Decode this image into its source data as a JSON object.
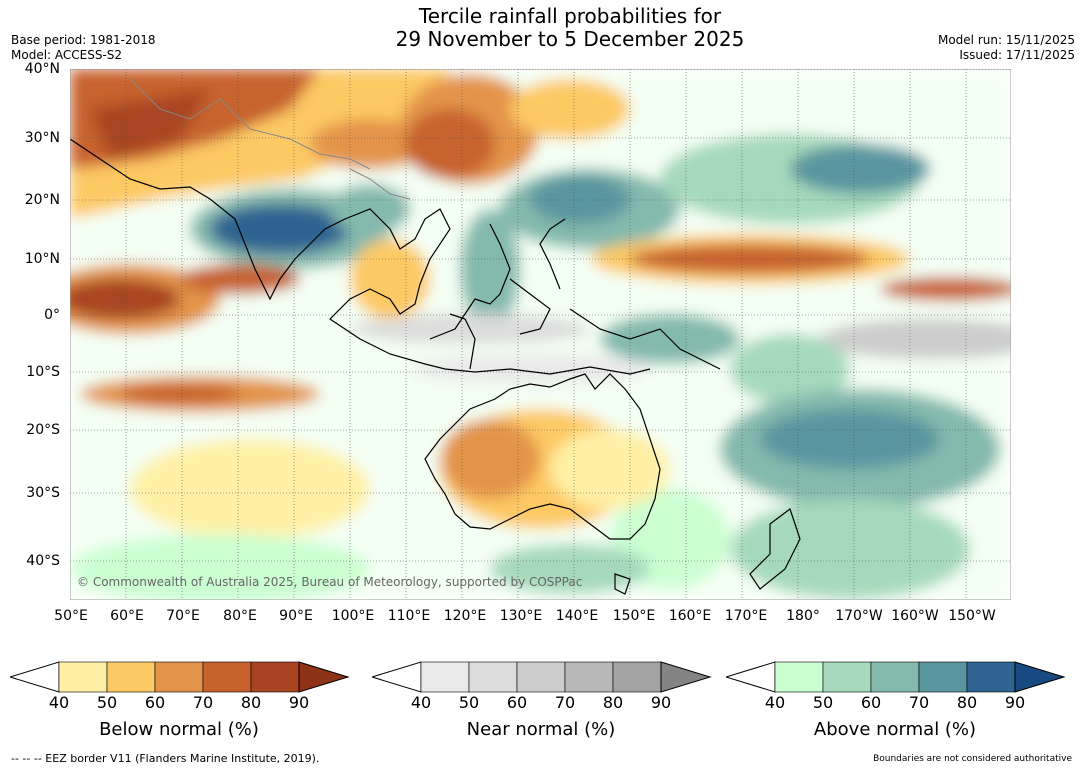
{
  "title": {
    "line1": "Tercile rainfall probabilities for",
    "line2": "29 November to 5 December 2025"
  },
  "meta": {
    "base_period": "Base period: 1981-2018",
    "model": "Model: ACCESS-S2",
    "model_run": "Model run: 15/11/2025",
    "issued": "Issued: 17/11/2025"
  },
  "map": {
    "lat_labels": [
      "40°N",
      "30°N",
      "20°N",
      "10°N",
      "0°",
      "10°S",
      "20°S",
      "30°S",
      "40°S"
    ],
    "lon_labels": [
      "50°E",
      "60°E",
      "70°E",
      "80°E",
      "90°E",
      "100°E",
      "110°E",
      "120°E",
      "130°E",
      "140°E",
      "150°E",
      "160°E",
      "170°E",
      "180°",
      "170°W",
      "160°W",
      "150°W"
    ],
    "copyright": "© Commonwealth of Australia 2025, Bureau of Meteorology, supported by COSPPac",
    "category_colors": {
      "below": [
        "#fff0a6",
        "#fdc964",
        "#e3944a",
        "#c8622d",
        "#a84421",
        "#8e3218"
      ],
      "near": [
        "#e9e9e9",
        "#dcdcdc",
        "#cccccc",
        "#b8b8b8",
        "#a3a3a3",
        "#848484"
      ],
      "above": [
        "#cbffd2",
        "#a6d9bb",
        "#84b9ad",
        "#5a96a0",
        "#2f6491",
        "#164a80"
      ]
    }
  },
  "colorbars": [
    {
      "label": "Below normal (%)",
      "ticks": [
        "40",
        "50",
        "60",
        "70",
        "80",
        "90"
      ]
    },
    {
      "label": "Near normal (%)",
      "ticks": [
        "40",
        "50",
        "60",
        "70",
        "80",
        "90"
      ]
    },
    {
      "label": "Above normal (%)",
      "ticks": [
        "40",
        "50",
        "60",
        "70",
        "80",
        "90"
      ]
    }
  ],
  "footer": {
    "eez": "--  --  -- EEZ border V11 (Flanders Marine Institute, 2019).",
    "disclaimer": "Boundaries are not considered authoritative"
  }
}
